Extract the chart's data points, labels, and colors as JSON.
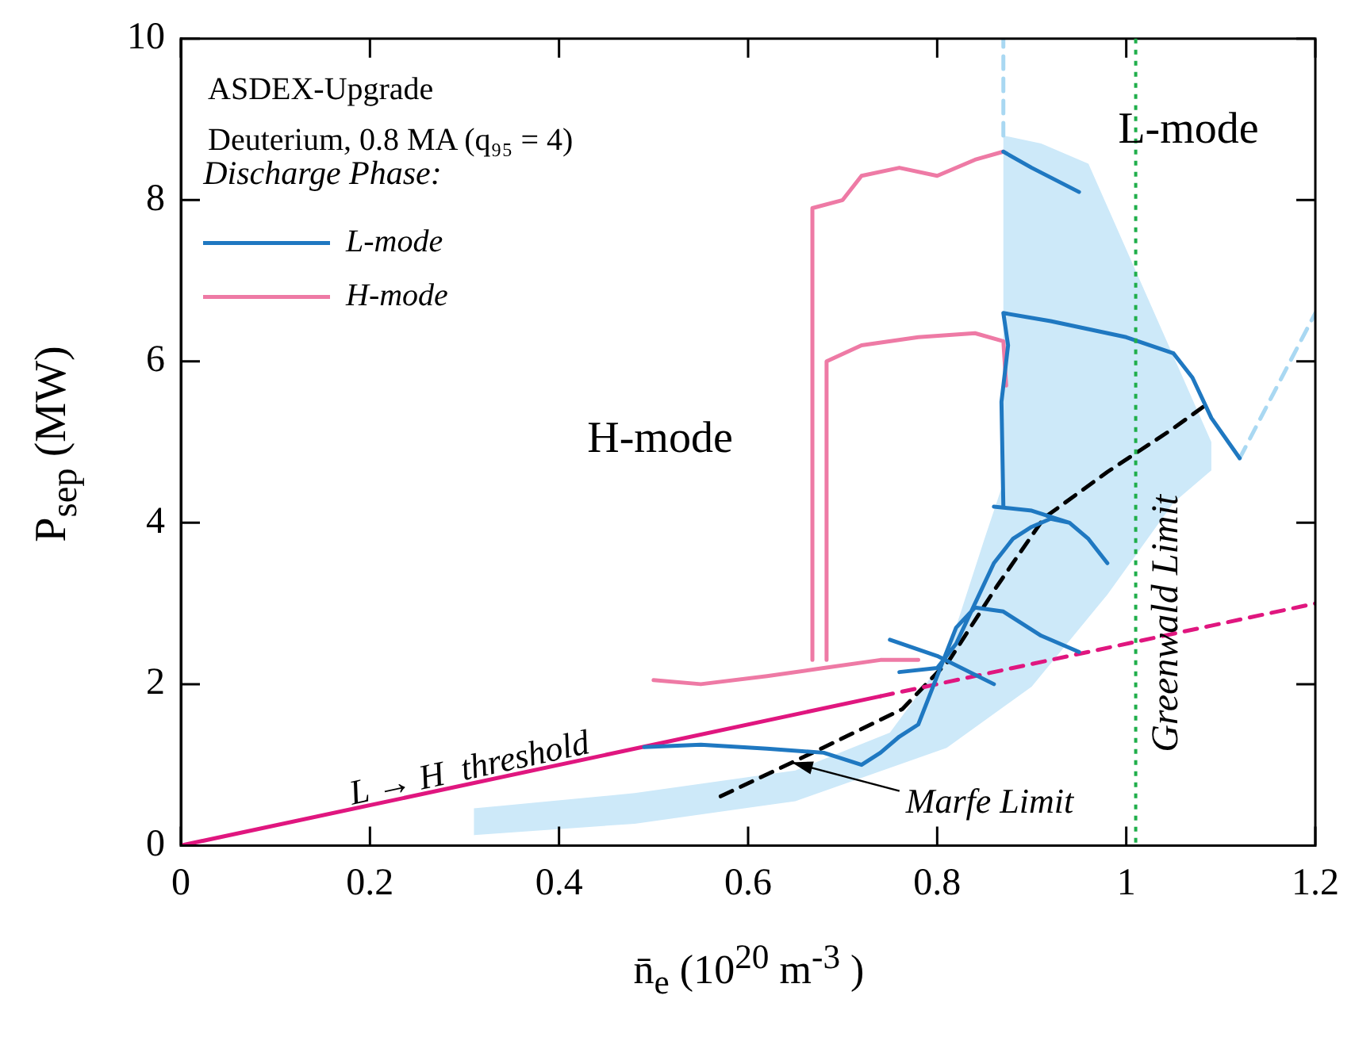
{
  "chart_data": {
    "type": "line",
    "xlabel": "n̄$_{e}$ (10$^{20}$ m$^{-3}$ )",
    "ylabel": "P$_{sep}$ (MW)",
    "xlim": [
      0,
      1.2
    ],
    "ylim": [
      0,
      10
    ],
    "xticks": [
      0,
      0.2,
      0.4,
      0.6,
      0.8,
      1,
      1.2
    ],
    "yticks": [
      0,
      2,
      4,
      6,
      8,
      10
    ],
    "legend": "top left",
    "legend_title": "Discharge Phase:",
    "marker": "none",
    "series": [
      {
        "type": "area",
        "color": "#cde9f9",
        "x": [
          0.31,
          0.48,
          0.65,
          0.81,
          0.9,
          0.98,
          1.05,
          1.09,
          1.09,
          0.96,
          0.91,
          0.87,
          0.87,
          0.85,
          0.81,
          0.75,
          0.65,
          0.48,
          0.31
        ],
        "values": [
          0.13,
          0.27,
          0.55,
          1.21,
          1.97,
          3.11,
          4.25,
          4.65,
          5.0,
          8.45,
          8.7,
          8.8,
          4.5,
          3.8,
          2.35,
          1.4,
          0.93,
          0.65,
          0.46
        ]
      },
      {
        "name": "L-mode",
        "color": "#1f78c1",
        "x": [
          0.49,
          0.55,
          0.62,
          0.68,
          0.72,
          0.74,
          0.76,
          0.78,
          0.8,
          0.82,
          0.84,
          0.87,
          0.91,
          0.95,
          null,
          0.75,
          0.8,
          0.86,
          null,
          0.76,
          0.8,
          0.82,
          0.84,
          0.86,
          0.88,
          0.9,
          0.92,
          0.94,
          0.96,
          0.98,
          null,
          0.86,
          0.9,
          0.94,
          null,
          0.87,
          0.868,
          0.875,
          0.87,
          0.92,
          1.0,
          1.05,
          1.07,
          1.09,
          1.12,
          null,
          0.87,
          0.9,
          0.95
        ],
        "values": [
          1.22,
          1.25,
          1.2,
          1.15,
          1.0,
          1.15,
          1.35,
          1.5,
          2.1,
          2.7,
          2.95,
          2.9,
          2.6,
          2.4,
          null,
          2.55,
          2.35,
          2.0,
          null,
          2.15,
          2.2,
          2.5,
          3.0,
          3.5,
          3.8,
          3.95,
          4.05,
          4.0,
          3.8,
          3.5,
          null,
          4.2,
          4.15,
          4.0,
          null,
          4.2,
          5.5,
          6.2,
          6.6,
          6.5,
          6.3,
          6.1,
          5.8,
          5.3,
          4.8,
          null,
          8.6,
          8.4,
          8.1
        ]
      },
      {
        "name": "H-mode",
        "color": "#ee7aa5",
        "x": [
          0.5,
          0.55,
          0.62,
          0.68,
          0.74,
          0.78,
          null,
          0.668,
          0.668,
          0.7,
          0.72,
          0.76,
          0.8,
          0.84,
          0.87,
          null,
          0.683,
          0.683,
          0.72,
          0.78,
          0.84,
          0.87,
          0.873
        ],
        "values": [
          2.05,
          2.0,
          2.1,
          2.2,
          2.3,
          2.3,
          null,
          2.3,
          7.9,
          8.0,
          8.3,
          8.4,
          8.3,
          8.5,
          8.6,
          null,
          2.3,
          6.0,
          6.2,
          6.3,
          6.35,
          6.25,
          5.7
        ]
      },
      {
        "color": "#e0167f",
        "x": [
          0,
          0.74
        ],
        "values": [
          0,
          1.85
        ]
      },
      {
        "color": "#e0167f",
        "line_style": "dashed",
        "x": [
          0.74,
          1.2
        ],
        "values": [
          1.85,
          3.0
        ]
      },
      {
        "color": "#000000",
        "line_style": "dashed",
        "x": [
          0.571,
          0.679,
          0.763,
          0.813,
          0.863,
          0.913,
          0.98,
          1.046,
          1.083
        ],
        "values": [
          0.61,
          1.21,
          1.69,
          2.3,
          3.21,
          4.06,
          4.63,
          5.14,
          5.45
        ]
      },
      {
        "color": "#a9d8f2",
        "line_style": "dashed",
        "x": [
          0.87,
          0.87
        ],
        "values": [
          8.8,
          10
        ]
      },
      {
        "color": "#a9d8f2",
        "line_style": "dashed",
        "x": [
          1.12,
          1.2
        ],
        "values": [
          4.8,
          6.6
        ]
      }
    ],
    "ref_lines": [
      {
        "axis": "x",
        "value": 1.01,
        "label": "Greenwald Limit",
        "color": "#1fae4a",
        "line_style": "dotted"
      }
    ],
    "annotations": [
      "ASDEX-Upgrade",
      "Deuterium, 0.8 MA (q₉₅ = 4)",
      "H-mode",
      "L-mode",
      "L → H  threshold",
      {
        "text": "Marfe Limit",
        "x": 0.646,
        "y": 1.03
      }
    ]
  }
}
